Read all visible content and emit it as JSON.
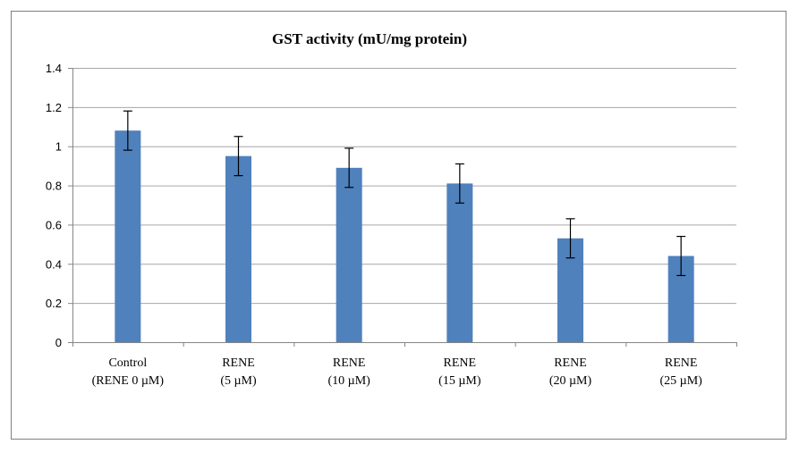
{
  "chart_data": {
    "type": "bar",
    "title": "GST activity (mU/mg  protein)",
    "xlabel": "",
    "ylabel": "",
    "categories": [
      [
        "Control",
        "(RENE  0 µM)"
      ],
      [
        "RENE",
        "(5 µM)"
      ],
      [
        "RENE",
        "(10 µM)"
      ],
      [
        "RENE",
        "(15 µM)"
      ],
      [
        "RENE",
        "(20 µM)"
      ],
      [
        "RENE",
        "(25 µM)"
      ]
    ],
    "values": [
      1.08,
      0.95,
      0.89,
      0.81,
      0.53,
      0.44
    ],
    "errors": [
      0.1,
      0.1,
      0.1,
      0.1,
      0.1,
      0.1
    ],
    "ylim": [
      0,
      1.4
    ],
    "yticks": [
      "0",
      "0.2",
      "0.4",
      "0.6",
      "0.8",
      "1",
      "1.2",
      "1.4"
    ],
    "ytick_values": [
      0,
      0.2,
      0.4,
      0.6,
      0.8,
      1.0,
      1.2,
      1.4
    ],
    "grid": true,
    "legend": "none",
    "colors": {
      "bar": "#4f81bd",
      "grid": "#a6a6a6",
      "error": "#000000"
    }
  }
}
